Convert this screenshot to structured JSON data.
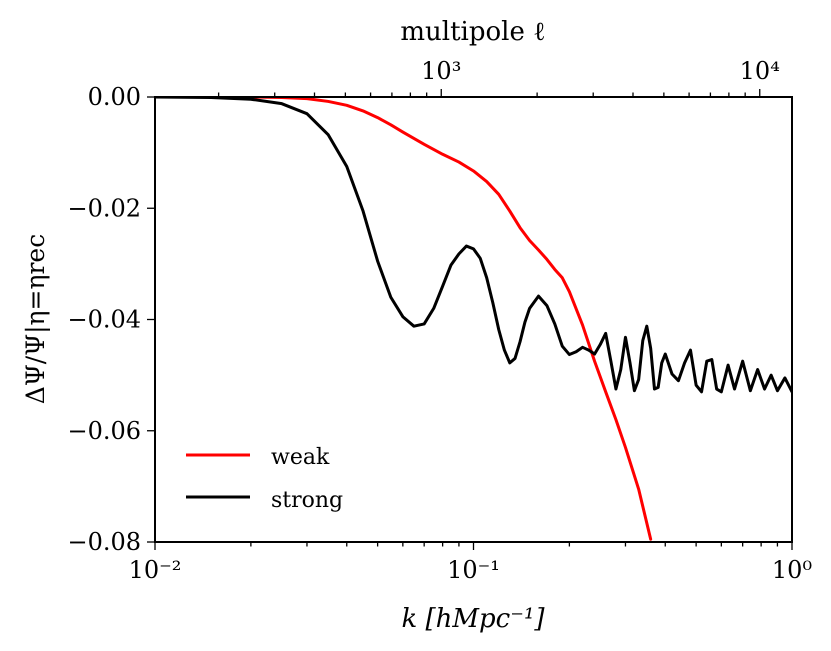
{
  "chart_data": {
    "type": "line",
    "xlabel": "k  [hMpc⁻¹]",
    "ylabel": "ΔΨ/Ψ|η=ηrec",
    "top_xlabel": "multipole ℓ",
    "xscale": "log",
    "xlim": [
      0.01,
      1.0
    ],
    "ylim": [
      -0.08,
      0.0
    ],
    "x_ticks": [
      {
        "value": 0.01,
        "label": "10⁻²"
      },
      {
        "value": 0.1,
        "label": "10⁻¹"
      },
      {
        "value": 1.0,
        "label": "10⁰"
      }
    ],
    "y_ticks": [
      {
        "value": 0.0,
        "label": "0.00"
      },
      {
        "value": -0.02,
        "label": "−0.02"
      },
      {
        "value": -0.04,
        "label": "−0.04"
      },
      {
        "value": -0.06,
        "label": "−0.06"
      },
      {
        "value": -0.08,
        "label": "−0.08"
      }
    ],
    "top_axis": {
      "scale": "log",
      "k_per_ell": 7.92e-05,
      "ticks": [
        {
          "ell": 1000,
          "label": "10³"
        },
        {
          "ell": 10000,
          "label": "10⁴"
        }
      ]
    },
    "legend_position": "lower-left",
    "series": [
      {
        "name": "weak",
        "color": "#ff0000",
        "x": [
          0.01,
          0.015,
          0.02,
          0.025,
          0.03,
          0.035,
          0.04,
          0.045,
          0.05,
          0.055,
          0.06,
          0.07,
          0.08,
          0.09,
          0.1,
          0.11,
          0.12,
          0.13,
          0.14,
          0.15,
          0.16,
          0.17,
          0.18,
          0.19,
          0.2,
          0.22,
          0.24,
          0.26,
          0.28,
          0.3,
          0.33,
          0.36
        ],
        "y": [
          0.0,
          0.0,
          0.0,
          -0.0001,
          -0.0003,
          -0.0008,
          -0.0015,
          -0.0025,
          -0.0037,
          -0.005,
          -0.0063,
          -0.0085,
          -0.0103,
          -0.0117,
          -0.0133,
          -0.0152,
          -0.0175,
          -0.0205,
          -0.0235,
          -0.0258,
          -0.0275,
          -0.0292,
          -0.031,
          -0.0325,
          -0.035,
          -0.041,
          -0.0475,
          -0.053,
          -0.058,
          -0.063,
          -0.0705,
          -0.0795
        ]
      },
      {
        "name": "strong",
        "color": "#000000",
        "x": [
          0.01,
          0.015,
          0.02,
          0.025,
          0.03,
          0.035,
          0.04,
          0.045,
          0.05,
          0.055,
          0.06,
          0.065,
          0.07,
          0.075,
          0.08,
          0.085,
          0.09,
          0.095,
          0.1,
          0.105,
          0.11,
          0.115,
          0.12,
          0.125,
          0.13,
          0.135,
          0.14,
          0.145,
          0.15,
          0.16,
          0.17,
          0.18,
          0.19,
          0.2,
          0.21,
          0.22,
          0.23,
          0.24,
          0.25,
          0.26,
          0.27,
          0.28,
          0.29,
          0.3,
          0.31,
          0.32,
          0.33,
          0.34,
          0.35,
          0.36,
          0.37,
          0.38,
          0.39,
          0.4,
          0.42,
          0.44,
          0.46,
          0.48,
          0.5,
          0.52,
          0.54,
          0.56,
          0.58,
          0.6,
          0.63,
          0.66,
          0.7,
          0.74,
          0.78,
          0.82,
          0.86,
          0.9,
          0.95,
          1.0
        ],
        "y": [
          0.0,
          -0.0001,
          -0.0004,
          -0.0012,
          -0.003,
          -0.0068,
          -0.0125,
          -0.0205,
          -0.0295,
          -0.036,
          -0.0395,
          -0.0412,
          -0.0408,
          -0.038,
          -0.034,
          -0.0302,
          -0.0282,
          -0.0268,
          -0.0273,
          -0.029,
          -0.0325,
          -0.037,
          -0.0418,
          -0.0455,
          -0.0478,
          -0.047,
          -0.044,
          -0.0405,
          -0.038,
          -0.0358,
          -0.0375,
          -0.0408,
          -0.0448,
          -0.0463,
          -0.0458,
          -0.045,
          -0.0455,
          -0.0462,
          -0.0445,
          -0.0425,
          -0.0475,
          -0.0525,
          -0.049,
          -0.0432,
          -0.0478,
          -0.0528,
          -0.0508,
          -0.0438,
          -0.0412,
          -0.0452,
          -0.0525,
          -0.0522,
          -0.0478,
          -0.0462,
          -0.0498,
          -0.051,
          -0.0478,
          -0.0455,
          -0.0518,
          -0.053,
          -0.0475,
          -0.0472,
          -0.0525,
          -0.053,
          -0.0482,
          -0.0525,
          -0.0475,
          -0.0528,
          -0.049,
          -0.0525,
          -0.05,
          -0.0528,
          -0.0505,
          -0.053
        ]
      }
    ]
  }
}
